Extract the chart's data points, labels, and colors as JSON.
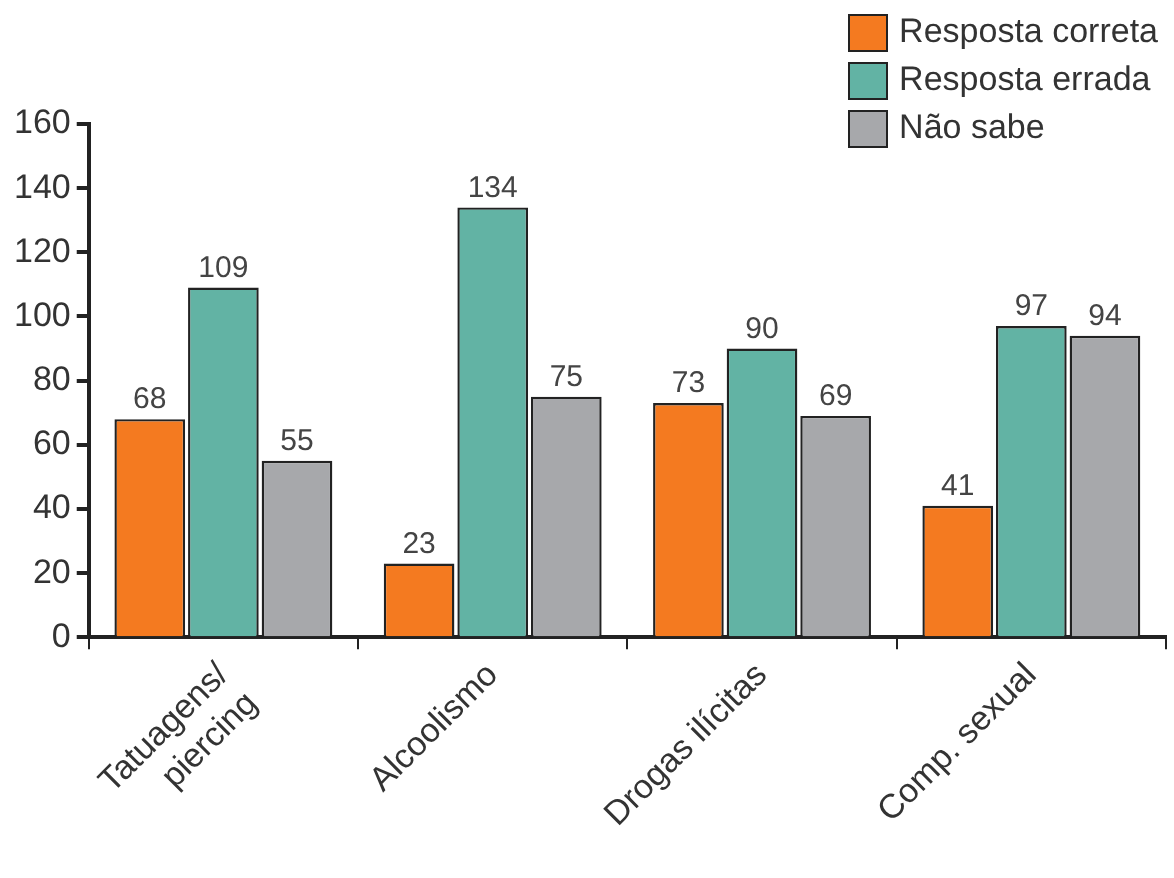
{
  "chart_data": {
    "type": "bar",
    "categories": [
      "Tatuagens/ piercing",
      "Alcoolismo",
      "Drogas ilícitas",
      "Comp. sexual"
    ],
    "series": [
      {
        "name": "Resposta correta",
        "color": "#f47a20",
        "values": [
          68,
          23,
          73,
          41
        ]
      },
      {
        "name": "Resposta errada",
        "color": "#62b3a4",
        "values": [
          109,
          134,
          90,
          97
        ]
      },
      {
        "name": "Não sabe",
        "color": "#a7a8ab",
        "values": [
          55,
          75,
          69,
          94
        ]
      }
    ],
    "ylim": [
      0,
      160
    ],
    "yticks": [
      0,
      20,
      40,
      60,
      80,
      100,
      120,
      140,
      160
    ],
    "grid": false,
    "legend": "top right",
    "data_labels": true
  }
}
